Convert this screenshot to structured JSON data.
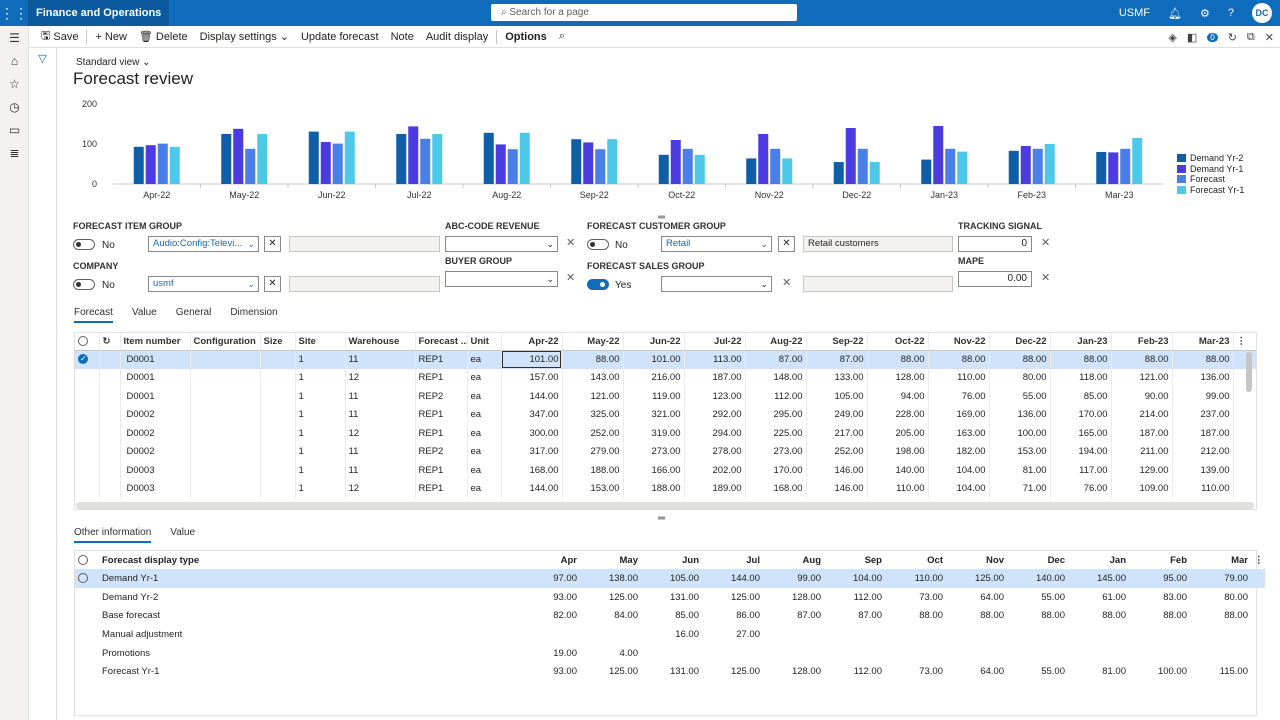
{
  "app": {
    "title": "Finance and Operations",
    "search_placeholder": "Search for a page",
    "company": "USMF",
    "user_initials": "DC"
  },
  "actions": {
    "save": "Save",
    "new": "New",
    "delete": "Delete",
    "display_settings": "Display settings",
    "update_forecast": "Update forecast",
    "note": "Note",
    "audit_display": "Audit display",
    "options": "Options",
    "notif_count": "0"
  },
  "page": {
    "view": "Standard view",
    "title": "Forecast review"
  },
  "chart_data": {
    "type": "bar",
    "categories": [
      "Apr-22",
      "May-22",
      "Jun-22",
      "Jul-22",
      "Aug-22",
      "Sep-22",
      "Oct-22",
      "Nov-22",
      "Dec-22",
      "Jan-23",
      "Feb-23",
      "Mar-23"
    ],
    "ylim": [
      0,
      200
    ],
    "yticks": [
      "200",
      "100",
      "0"
    ],
    "series": [
      {
        "name": "Demand Yr-2",
        "color": "#0f5ea8",
        "values": [
          93,
          125,
          131,
          125,
          128,
          112,
          73,
          64,
          55,
          61,
          83,
          80
        ]
      },
      {
        "name": "Demand Yr-1",
        "color": "#4b3be0",
        "values": [
          97,
          138,
          105,
          144,
          99,
          104,
          110,
          125,
          140,
          145,
          95,
          79
        ]
      },
      {
        "name": "Forecast",
        "color": "#4a7fe8",
        "values": [
          101,
          88,
          101,
          113,
          87,
          87,
          88,
          88,
          88,
          88,
          88,
          88
        ]
      },
      {
        "name": "Forecast Yr-1",
        "color": "#4cc9e8",
        "values": [
          93,
          125,
          131,
          125,
          128,
          112,
          73,
          64,
          55,
          81,
          100,
          115
        ]
      }
    ],
    "legend_position": "right"
  },
  "filters": {
    "forecast_item_group": {
      "label": "FORECAST ITEM GROUP",
      "toggle": "No",
      "value": "Audio:Config:Televi..."
    },
    "company": {
      "label": "COMPANY",
      "toggle": "No",
      "value": "usmf"
    },
    "abc_code_revenue": {
      "label": "ABC-CODE REVENUE",
      "value": ""
    },
    "buyer_group": {
      "label": "BUYER GROUP",
      "value": ""
    },
    "forecast_customer_group": {
      "label": "FORECAST CUSTOMER GROUP",
      "toggle": "No",
      "value": "Retail",
      "description": "Retail customers"
    },
    "forecast_sales_group": {
      "label": "FORECAST SALES GROUP",
      "toggle": "Yes",
      "value": ""
    },
    "tracking_signal": {
      "label": "TRACKING SIGNAL",
      "value": "0"
    },
    "mape": {
      "label": "MAPE",
      "value": "0.00"
    }
  },
  "tabs1": [
    "Forecast",
    "Value",
    "General",
    "Dimension"
  ],
  "grid": {
    "headers": [
      "Item number",
      "Configuration",
      "Size",
      "Site",
      "Warehouse",
      "Forecast ...",
      "Unit",
      "Apr-22",
      "May-22",
      "Jun-22",
      "Jul-22",
      "Aug-22",
      "Sep-22",
      "Oct-22",
      "Nov-22",
      "Dec-22",
      "Jan-23",
      "Feb-23",
      "Mar-23"
    ],
    "rows": [
      [
        "D0001",
        "",
        "",
        "1",
        "11",
        "REP1",
        "ea",
        "101.00",
        "88.00",
        "101.00",
        "113.00",
        "87.00",
        "87.00",
        "88.00",
        "88.00",
        "88.00",
        "88.00",
        "88.00",
        "88.00"
      ],
      [
        "D0001",
        "",
        "",
        "1",
        "12",
        "REP1",
        "ea",
        "157.00",
        "143.00",
        "216.00",
        "187.00",
        "148.00",
        "133.00",
        "128.00",
        "110.00",
        "80.00",
        "118.00",
        "121.00",
        "136.00"
      ],
      [
        "D0001",
        "",
        "",
        "1",
        "11",
        "REP2",
        "ea",
        "144.00",
        "121.00",
        "119.00",
        "123.00",
        "112.00",
        "105.00",
        "94.00",
        "76.00",
        "55.00",
        "85.00",
        "90.00",
        "99.00"
      ],
      [
        "D0002",
        "",
        "",
        "1",
        "11",
        "REP1",
        "ea",
        "347.00",
        "325.00",
        "321.00",
        "292.00",
        "295.00",
        "249.00",
        "228.00",
        "169.00",
        "136.00",
        "170.00",
        "214.00",
        "237.00"
      ],
      [
        "D0002",
        "",
        "",
        "1",
        "12",
        "REP1",
        "ea",
        "300.00",
        "252.00",
        "319.00",
        "294.00",
        "225.00",
        "217.00",
        "205.00",
        "163.00",
        "100.00",
        "165.00",
        "187.00",
        "187.00"
      ],
      [
        "D0002",
        "",
        "",
        "1",
        "11",
        "REP2",
        "ea",
        "317.00",
        "279.00",
        "273.00",
        "278.00",
        "273.00",
        "252.00",
        "198.00",
        "182.00",
        "153.00",
        "194.00",
        "211.00",
        "212.00"
      ],
      [
        "D0003",
        "",
        "",
        "1",
        "11",
        "REP1",
        "ea",
        "168.00",
        "188.00",
        "166.00",
        "202.00",
        "170.00",
        "146.00",
        "140.00",
        "104.00",
        "81.00",
        "117.00",
        "129.00",
        "139.00"
      ],
      [
        "D0003",
        "",
        "",
        "1",
        "12",
        "REP1",
        "ea",
        "144.00",
        "153.00",
        "188.00",
        "189.00",
        "168.00",
        "146.00",
        "110.00",
        "104.00",
        "71.00",
        "76.00",
        "109.00",
        "110.00"
      ]
    ]
  },
  "tabs2": [
    "Other information",
    "Value"
  ],
  "grid2": {
    "headers": [
      "Forecast display type",
      "Apr",
      "May",
      "Jun",
      "Jul",
      "Aug",
      "Sep",
      "Oct",
      "Nov",
      "Dec",
      "Jan",
      "Feb",
      "Mar"
    ],
    "rows": [
      [
        "Demand Yr-1",
        "97.00",
        "138.00",
        "105.00",
        "144.00",
        "99.00",
        "104.00",
        "110.00",
        "125.00",
        "140.00",
        "145.00",
        "95.00",
        "79.00"
      ],
      [
        "Demand Yr-2",
        "93.00",
        "125.00",
        "131.00",
        "125.00",
        "128.00",
        "112.00",
        "73.00",
        "64.00",
        "55.00",
        "61.00",
        "83.00",
        "80.00"
      ],
      [
        "Base forecast",
        "82.00",
        "84.00",
        "85.00",
        "86.00",
        "87.00",
        "87.00",
        "88.00",
        "88.00",
        "88.00",
        "88.00",
        "88.00",
        "88.00"
      ],
      [
        "Manual adjustment",
        "",
        "",
        "16.00",
        "27.00",
        "",
        "",
        "",
        "",
        "",
        "",
        "",
        ""
      ],
      [
        "Promotions",
        "19.00",
        "4.00",
        "",
        "",
        "",
        "",
        "",
        "",
        "",
        "",
        "",
        ""
      ],
      [
        "Forecast Yr-1",
        "93.00",
        "125.00",
        "131.00",
        "125.00",
        "128.00",
        "112.00",
        "73.00",
        "64.00",
        "55.00",
        "81.00",
        "100.00",
        "115.00"
      ]
    ]
  }
}
